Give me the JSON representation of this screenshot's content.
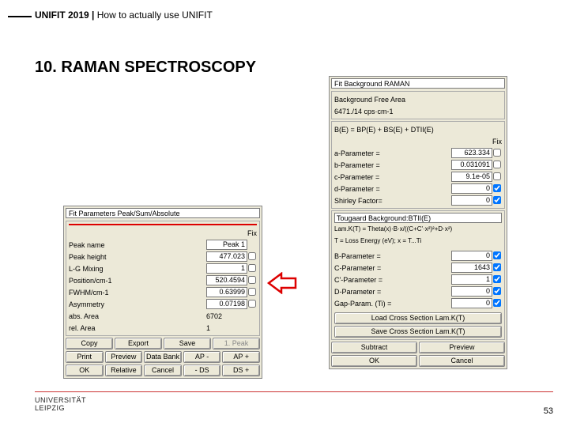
{
  "breadcrumb": {
    "main": "UNIFIT 2019",
    "sep": " | ",
    "sub": "How to actually use UNIFIT"
  },
  "section_title": "10. RAMAN SPECTROSCOPY",
  "page_number": "53",
  "university": {
    "line1": "UNIVERSITÄT",
    "line2": "LEIPZIG"
  },
  "left_panel": {
    "title": "Fit Parameters Peak/Sum/Absolute",
    "fix_header": "Fix",
    "rows": [
      {
        "label": "Peak name",
        "value": "Peak 1",
        "has_fix": false
      },
      {
        "label": "Peak height",
        "value": "477.023",
        "has_fix": true,
        "fix": false
      },
      {
        "label": "L-G Mixing",
        "value": "1",
        "has_fix": true,
        "fix": false
      },
      {
        "label": "Position/cm-1",
        "value": "520.4594",
        "has_fix": true,
        "fix": false
      },
      {
        "label": "FWHM/cm-1",
        "value": "0.63999",
        "has_fix": true,
        "fix": false
      },
      {
        "label": "Asymmetry",
        "value": "0.07198",
        "has_fix": true,
        "fix": false
      },
      {
        "label": "abs. Area",
        "value": "6702",
        "has_fix": false,
        "plain": true
      },
      {
        "label": "rel. Area",
        "value": "1",
        "has_fix": false,
        "plain": true
      }
    ],
    "button_rows": [
      [
        {
          "t": "Copy"
        },
        {
          "t": "Export"
        },
        {
          "t": "Save"
        },
        {
          "t": "1. Peak",
          "d": true
        }
      ],
      [
        {
          "t": "Print"
        },
        {
          "t": "Preview"
        },
        {
          "t": "Data Bank"
        },
        {
          "t": "AP -"
        },
        {
          "t": "AP +"
        }
      ],
      [
        {
          "t": "OK"
        },
        {
          "t": "Relative"
        },
        {
          "t": "Cancel"
        },
        {
          "t": "- DS"
        },
        {
          "t": "DS +"
        }
      ]
    ]
  },
  "right_panel": {
    "title": "Fit Background RAMAN",
    "free_area_label": "Background Free Area",
    "free_area_value": "6471./14 cps·cm-1",
    "formula": "B(E) = BP(E) + BS(E) + DTII(E)",
    "fix_header": "Fix",
    "poly_rows": [
      {
        "label": "a-Parameter =",
        "value": "623.334",
        "fix": false
      },
      {
        "label": "b-Parameter =",
        "value": "0.031091",
        "fix": false
      },
      {
        "label": "c-Parameter =",
        "value": "9.1e-05",
        "fix": false
      },
      {
        "label": "d-Parameter =",
        "value": "0",
        "fix": true
      },
      {
        "label": "Shirley Factor=",
        "value": "0",
        "fix": true
      }
    ],
    "tougaard_header": "Tougaard Background:BTII(E)",
    "tougaard_formula1": "Lam.K(T) = Theta(x)·B·x/((C+C'·x²)²+D·x²)",
    "tougaard_formula2": "T = Loss Energy (eV); x = T...Ti",
    "tougaard_rows": [
      {
        "label": "B-Parameter =",
        "value": "0",
        "fix": true
      },
      {
        "label": "C-Parameter =",
        "value": "1643",
        "fix": true
      },
      {
        "label": "C'-Parameter =",
        "value": "1",
        "fix": true
      },
      {
        "label": "D-Parameter =",
        "value": "0",
        "fix": true
      },
      {
        "label": "Gap-Param. (Ti) =",
        "value": "0",
        "fix": true
      }
    ],
    "load_btn": "Load Cross Section Lam.K(T)",
    "save_btn": "Save Cross Section Lam.K(T)",
    "bottom_buttons": [
      [
        {
          "t": "Subtract"
        },
        {
          "t": "Preview"
        }
      ],
      [
        {
          "t": "OK"
        },
        {
          "t": "Cancel"
        }
      ]
    ]
  }
}
